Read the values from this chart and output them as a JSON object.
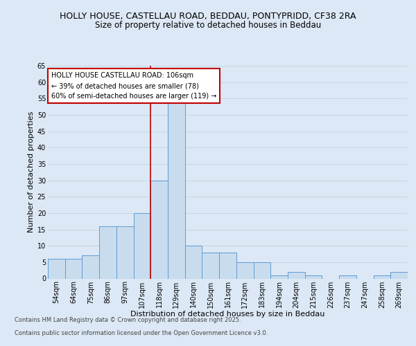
{
  "title_line1": "HOLLY HOUSE, CASTELLAU ROAD, BEDDAU, PONTYPRIDD, CF38 2RA",
  "title_line2": "Size of property relative to detached houses in Beddau",
  "xlabel": "Distribution of detached houses by size in Beddau",
  "ylabel": "Number of detached properties",
  "categories": [
    "54sqm",
    "64sqm",
    "75sqm",
    "86sqm",
    "97sqm",
    "107sqm",
    "118sqm",
    "129sqm",
    "140sqm",
    "150sqm",
    "161sqm",
    "172sqm",
    "183sqm",
    "194sqm",
    "204sqm",
    "215sqm",
    "226sqm",
    "237sqm",
    "247sqm",
    "258sqm",
    "269sqm"
  ],
  "values": [
    6,
    6,
    7,
    16,
    16,
    20,
    30,
    54,
    10,
    8,
    8,
    5,
    5,
    1,
    2,
    1,
    0,
    1,
    0,
    1,
    2
  ],
  "bar_color": "#c9dcee",
  "bar_edge_color": "#5b9bd5",
  "background_color": "#dce8f5",
  "grid_color": "#c8d8e8",
  "vline_x": 6,
  "vline_color": "#c00000",
  "annotation_text": "HOLLY HOUSE CASTELLAU ROAD: 106sqm\n← 39% of detached houses are smaller (78)\n60% of semi-detached houses are larger (119) →",
  "annotation_box_color": "#ffffff",
  "annotation_edge_color": "#c00000",
  "ylim": [
    0,
    65
  ],
  "yticks": [
    0,
    5,
    10,
    15,
    20,
    25,
    30,
    35,
    40,
    45,
    50,
    55,
    60,
    65
  ],
  "footer_line1": "Contains HM Land Registry data © Crown copyright and database right 2025.",
  "footer_line2": "Contains public sector information licensed under the Open Government Licence v3.0.",
  "title_fontsize": 9,
  "title2_fontsize": 8.5,
  "axis_label_fontsize": 8,
  "tick_fontsize": 7,
  "annotation_fontsize": 7,
  "footer_fontsize": 6
}
